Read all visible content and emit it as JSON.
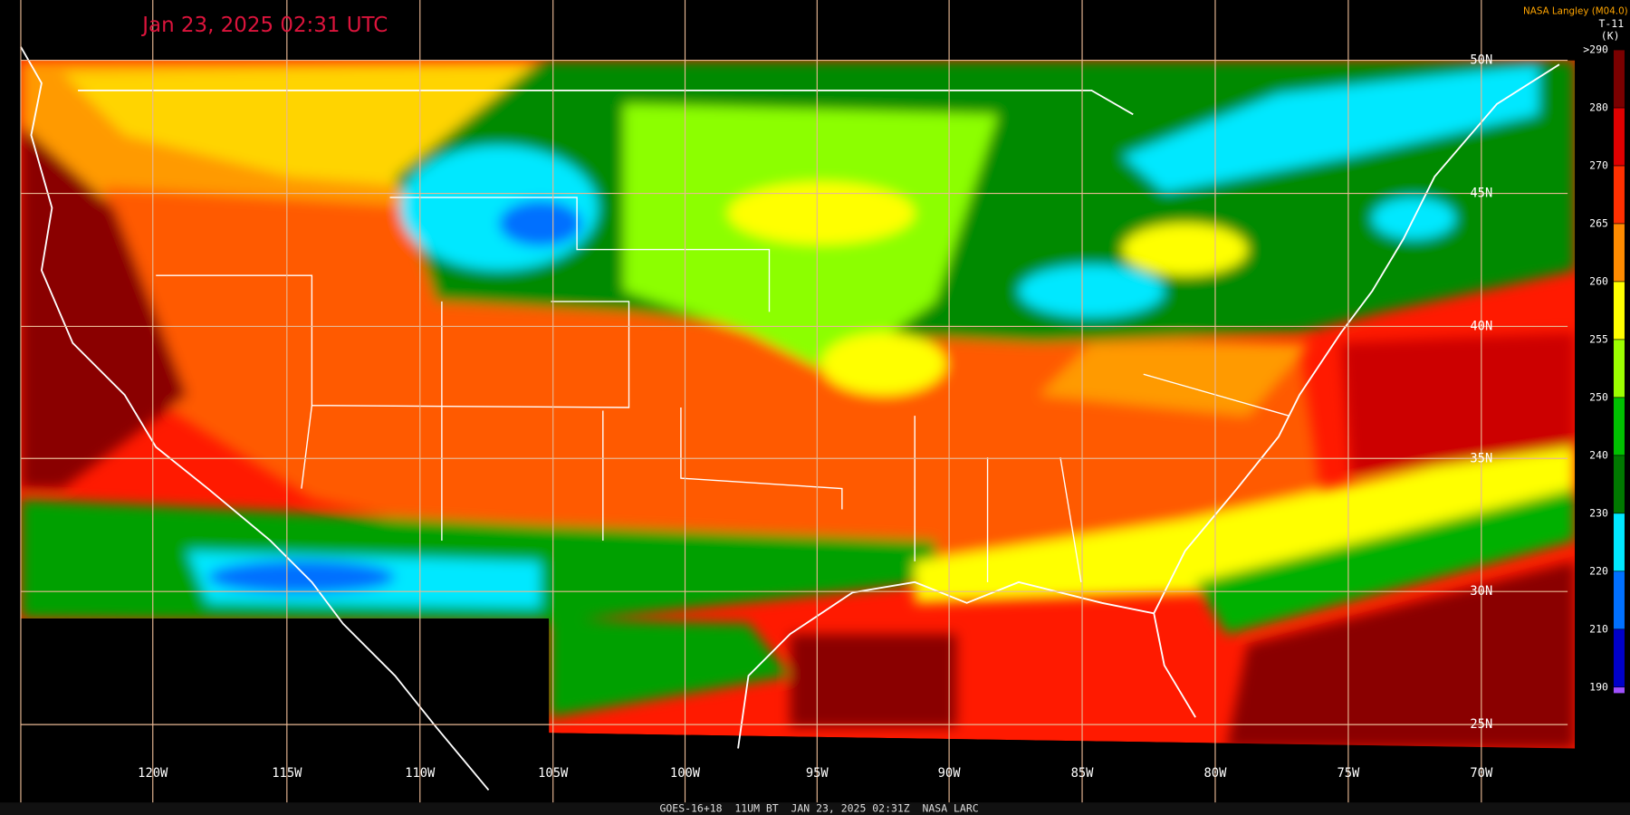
{
  "header": {
    "title": "Jan 23, 2025 02:31 UTC",
    "source": "NASA Langley (M04.0)",
    "channel": "T-11",
    "unit": "(K)"
  },
  "colorbar": {
    "labels": [
      ">290",
      "280",
      "270",
      "265",
      "260",
      "255",
      "250",
      "240",
      "230",
      "220",
      "210",
      "190"
    ],
    "colors": [
      "#7a0000",
      "#e00000",
      "#ff3000",
      "#ff8c00",
      "#ffff00",
      "#9cff00",
      "#00c000",
      "#007800",
      "#00e8ff",
      "#0070ff",
      "#0000c8",
      "#a050ff"
    ]
  },
  "longitudes": [
    "120W",
    "115W",
    "110W",
    "105W",
    "100W",
    "95W",
    "90W",
    "85W",
    "80W",
    "75W",
    "70W"
  ],
  "latitudes": [
    "50N",
    "45N",
    "40N",
    "35N",
    "30N",
    "25N"
  ],
  "footer": "GOES-16+18  11UM BT  JAN 23, 2025 02:31Z  NASA LARC"
}
